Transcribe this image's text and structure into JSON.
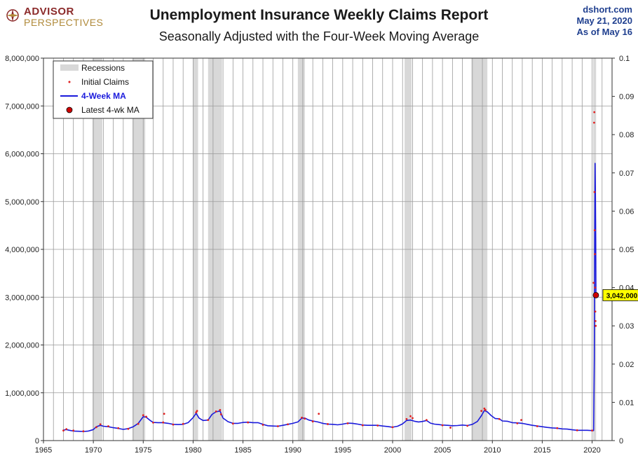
{
  "header": {
    "title": "Unemployment Insurance Weekly Claims Report",
    "subtitle": "Seasonally Adjusted with the Four-Week Moving Average",
    "logo_top": "ADVISOR",
    "logo_bottom": "PERSPECTIVES",
    "source_line1": "dshort.com",
    "source_line2": "May 21, 2020",
    "source_line3": "As of May 16"
  },
  "chart_data": {
    "type": "line",
    "title": "Unemployment Insurance Weekly Claims Report",
    "subtitle": "Seasonally Adjusted with the Four-Week Moving Average",
    "xlim": [
      1965,
      2022
    ],
    "x_ticks": [
      1965,
      1970,
      1975,
      1980,
      1985,
      1990,
      1995,
      2000,
      2005,
      2010,
      2015,
      2020
    ],
    "ylim": [
      0,
      8000000
    ],
    "y_ticks": [
      0,
      1000000,
      2000000,
      3000000,
      4000000,
      5000000,
      6000000,
      7000000,
      8000000
    ],
    "y_tick_labels": [
      "0",
      "1,000,000",
      "2,000,000",
      "3,000,000",
      "4,000,000",
      "5,000,000",
      "6,000,000",
      "7,000,000",
      "8,000,000"
    ],
    "y2lim": [
      0,
      0.1
    ],
    "y2_ticks": [
      0,
      0.01,
      0.02,
      0.03,
      0.04,
      0.05,
      0.06,
      0.07,
      0.08,
      0.09,
      0.1
    ],
    "y2_tick_labels": [
      "0",
      "0.01",
      "0.02",
      "0.03",
      "0.04",
      "0.05",
      "0.06",
      "0.07",
      "0.08",
      "0.09",
      "0.1"
    ],
    "grid": true,
    "legend_placement": "top-left",
    "legend": [
      "Recessions",
      "Initial Claims",
      "4-Week MA",
      "Latest 4-wk MA"
    ],
    "recessions": [
      [
        1969.9,
        1970.9
      ],
      [
        1973.9,
        1975.2
      ],
      [
        1980.0,
        1980.5
      ],
      [
        1981.5,
        1982.9
      ],
      [
        1990.5,
        1991.2
      ],
      [
        2001.2,
        2001.9
      ],
      [
        2007.9,
        2009.5
      ],
      [
        2020.1,
        2020.4
      ]
    ],
    "series": [
      {
        "name": "4-Week MA",
        "color": "#1a1adc",
        "x": [
          1967.0,
          1967.3,
          1967.6,
          1968.0,
          1968.5,
          1969.0,
          1969.5,
          1970.0,
          1970.3,
          1970.7,
          1971.0,
          1971.5,
          1972.0,
          1972.5,
          1973.0,
          1973.5,
          1974.0,
          1974.5,
          1975.0,
          1975.3,
          1975.7,
          1976.0,
          1976.5,
          1977.0,
          1977.5,
          1978.0,
          1978.5,
          1979.0,
          1979.5,
          1980.0,
          1980.3,
          1980.6,
          1981.0,
          1981.5,
          1981.9,
          1982.3,
          1982.7,
          1983.0,
          1983.5,
          1984.0,
          1984.5,
          1985.0,
          1985.5,
          1986.0,
          1986.5,
          1987.0,
          1987.5,
          1988.0,
          1988.5,
          1989.0,
          1989.5,
          1990.0,
          1990.5,
          1990.9,
          1991.2,
          1991.6,
          1992.0,
          1992.5,
          1993.0,
          1993.5,
          1994.0,
          1994.5,
          1995.0,
          1995.5,
          1996.0,
          1996.5,
          1997.0,
          1997.5,
          1998.0,
          1998.5,
          1999.0,
          1999.5,
          2000.0,
          2000.5,
          2001.0,
          2001.4,
          2001.8,
          2002.2,
          2002.6,
          2003.0,
          2003.4,
          2003.8,
          2004.2,
          2004.6,
          2005.0,
          2005.5,
          2006.0,
          2006.5,
          2007.0,
          2007.5,
          2008.0,
          2008.5,
          2008.9,
          2009.2,
          2009.5,
          2009.9,
          2010.3,
          2010.7,
          2011.0,
          2011.5,
          2012.0,
          2012.5,
          2013.0,
          2013.5,
          2014.0,
          2014.5,
          2015.0,
          2015.5,
          2016.0,
          2016.5,
          2017.0,
          2017.5,
          2018.0,
          2018.5,
          2019.0,
          2019.5,
          2020.0,
          2020.15,
          2020.22,
          2020.26,
          2020.3,
          2020.33,
          2020.36,
          2020.38
        ],
        "values": [
          220000,
          230000,
          215000,
          200000,
          195000,
          190000,
          200000,
          230000,
          290000,
          320000,
          300000,
          290000,
          270000,
          255000,
          235000,
          250000,
          290000,
          360000,
          500000,
          490000,
          420000,
          380000,
          375000,
          375000,
          360000,
          340000,
          335000,
          340000,
          375000,
          480000,
          570000,
          470000,
          420000,
          430000,
          550000,
          600000,
          620000,
          470000,
          395000,
          360000,
          360000,
          380000,
          385000,
          375000,
          375000,
          340000,
          310000,
          305000,
          300000,
          320000,
          340000,
          360000,
          390000,
          470000,
          470000,
          430000,
          410000,
          390000,
          360000,
          345000,
          340000,
          330000,
          345000,
          365000,
          360000,
          345000,
          325000,
          320000,
          320000,
          320000,
          305000,
          295000,
          280000,
          300000,
          350000,
          420000,
          430000,
          405000,
          390000,
          400000,
          420000,
          365000,
          345000,
          335000,
          325000,
          320000,
          310000,
          315000,
          325000,
          315000,
          340000,
          400000,
          520000,
          630000,
          600000,
          520000,
          460000,
          455000,
          410000,
          405000,
          375000,
          370000,
          360000,
          340000,
          320000,
          305000,
          290000,
          275000,
          265000,
          260000,
          245000,
          240000,
          225000,
          215000,
          215000,
          215000,
          210000,
          210000,
          1700000,
          4000000,
          5800000,
          5200000,
          4200000,
          3042000
        ]
      },
      {
        "name": "Initial Claims",
        "color": "#e02020",
        "x": [
          1967.0,
          1967.3,
          1968.0,
          1969.0,
          1970.3,
          1970.7,
          1971.5,
          1972.5,
          1973.5,
          1974.5,
          1975.0,
          1975.3,
          1976.0,
          1977.0,
          1977.1,
          1978.0,
          1979.0,
          1980.3,
          1980.4,
          1981.5,
          1982.3,
          1982.7,
          1982.8,
          1984.0,
          1985.5,
          1987.0,
          1988.5,
          1989.5,
          1990.9,
          1991.2,
          1992.0,
          1992.6,
          1993.5,
          1995.5,
          1997.0,
          1998.5,
          2000.0,
          2001.4,
          2001.8,
          2002.0,
          2003.4,
          2005.0,
          2005.8,
          2007.5,
          2008.9,
          2009.2,
          2009.3,
          2010.7,
          2012.5,
          2012.9,
          2014.5,
          2016.5,
          2018.5,
          2020.0,
          2020.15,
          2020.2,
          2020.22,
          2020.24,
          2020.26,
          2020.28,
          2020.3,
          2020.32,
          2020.34,
          2020.36
        ],
        "values": [
          210000,
          240000,
          210000,
          195000,
          280000,
          340000,
          300000,
          260000,
          245000,
          350000,
          530000,
          500000,
          375000,
          380000,
          560000,
          335000,
          350000,
          590000,
          620000,
          430000,
          610000,
          640000,
          550000,
          355000,
          380000,
          330000,
          300000,
          340000,
          480000,
          460000,
          400000,
          560000,
          345000,
          360000,
          320000,
          315000,
          280000,
          450000,
          510000,
          470000,
          430000,
          320000,
          270000,
          310000,
          620000,
          670000,
          640000,
          450000,
          360000,
          430000,
          300000,
          260000,
          215000,
          210000,
          3300000,
          6650000,
          6870000,
          5200000,
          4400000,
          3900000,
          3200000,
          2700000,
          2500000,
          2400000
        ]
      }
    ],
    "latest": {
      "label": "Latest 4-wk MA",
      "x": 2020.38,
      "value": 3042000,
      "value_label": "3,042,000"
    }
  }
}
